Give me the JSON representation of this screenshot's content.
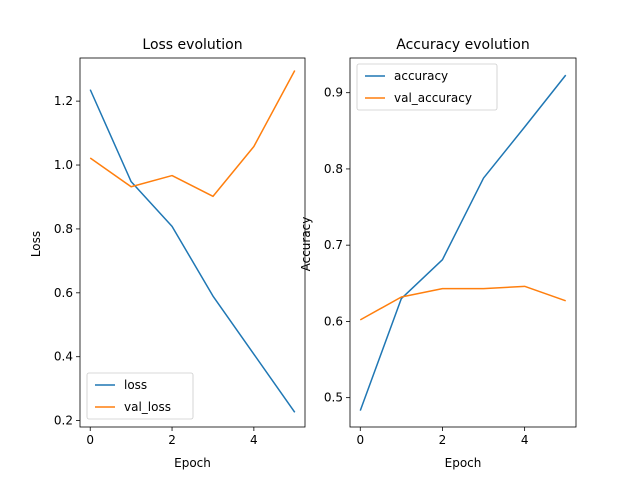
{
  "chart_data": [
    {
      "type": "line",
      "title": "Loss evolution",
      "xlabel": "Epoch",
      "ylabel": "Loss",
      "xlim": [
        -0.25,
        5.25
      ],
      "ylim": [
        0.18,
        1.335
      ],
      "xticks": [
        0,
        2,
        4
      ],
      "yticks": [
        0.2,
        0.4,
        0.6,
        0.8,
        1.0,
        1.2
      ],
      "ytick_labels": [
        "0.2",
        "0.4",
        "0.6",
        "0.8",
        "1.0",
        "1.2"
      ],
      "legend_position": "lower-left",
      "x": [
        0,
        1,
        2,
        3,
        4,
        5
      ],
      "series": [
        {
          "name": "loss",
          "color": "#1f77b4",
          "values": [
            1.236,
            0.948,
            0.808,
            0.59,
            0.408,
            0.226
          ]
        },
        {
          "name": "val_loss",
          "color": "#ff7f0e",
          "values": [
            1.022,
            0.932,
            0.967,
            0.902,
            1.058,
            1.296
          ]
        }
      ]
    },
    {
      "type": "line",
      "title": "Accuracy evolution",
      "xlabel": "Epoch",
      "ylabel": "Accuracy",
      "xlim": [
        -0.25,
        5.25
      ],
      "ylim": [
        0.4615,
        0.9455
      ],
      "xticks": [
        0,
        2,
        4
      ],
      "yticks": [
        0.5,
        0.6,
        0.7,
        0.8,
        0.9
      ],
      "ytick_labels": [
        "0.5",
        "0.6",
        "0.7",
        "0.8",
        "0.9"
      ],
      "legend_position": "upper-left",
      "x": [
        0,
        1,
        2,
        3,
        4,
        5
      ],
      "series": [
        {
          "name": "accuracy",
          "color": "#1f77b4",
          "values": [
            0.483,
            0.63,
            0.681,
            0.788,
            0.855,
            0.923
          ]
        },
        {
          "name": "val_accuracy",
          "color": "#ff7f0e",
          "values": [
            0.602,
            0.632,
            0.643,
            0.643,
            0.646,
            0.627
          ]
        }
      ]
    }
  ]
}
